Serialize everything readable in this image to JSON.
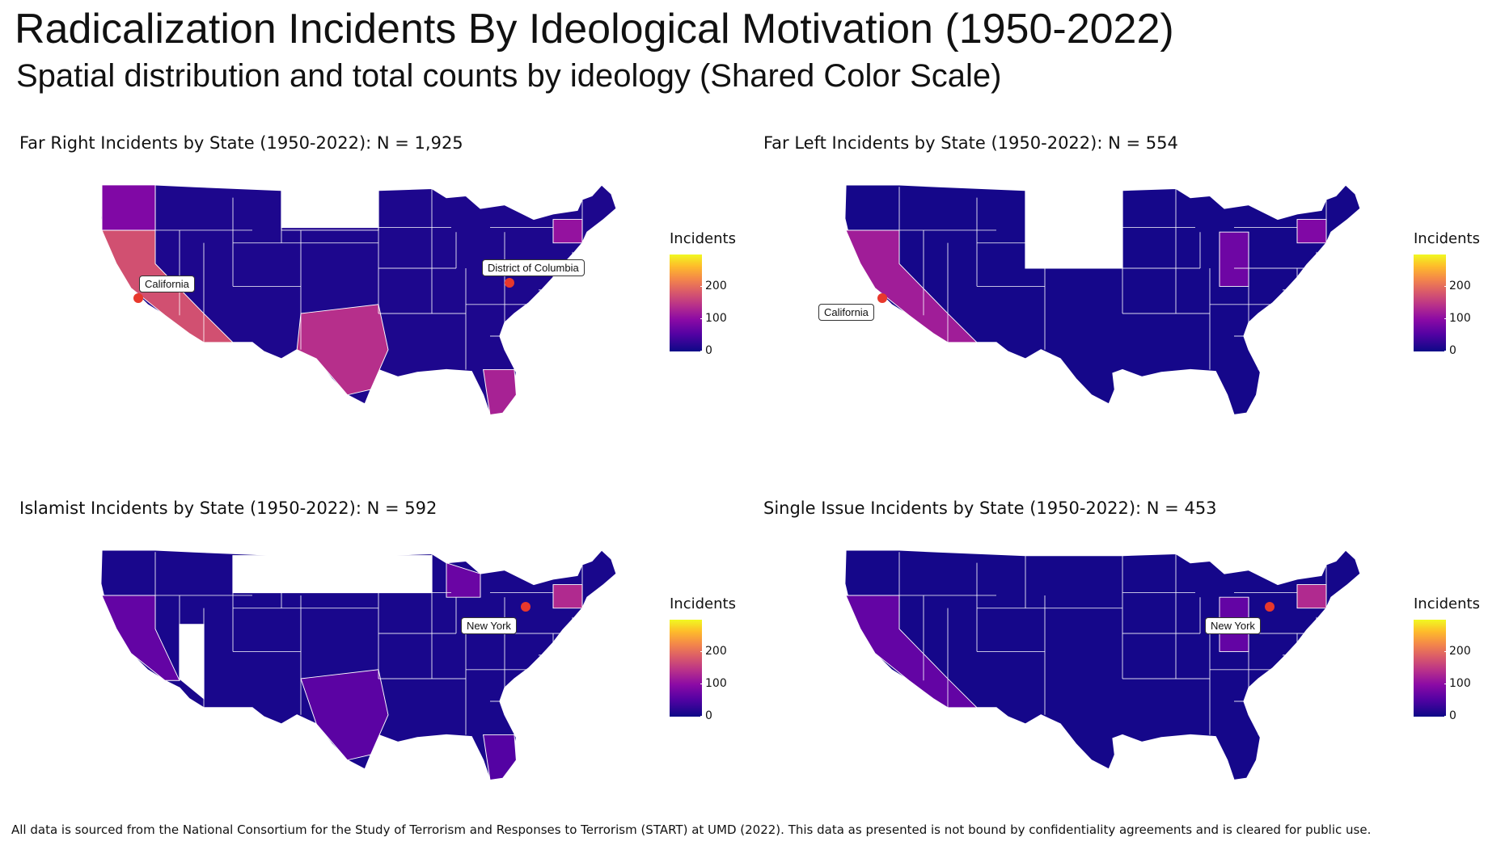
{
  "title": "Radicalization Incidents By Ideological Motivation (1950-2022)",
  "subtitle": "Spatial distribution and total counts by ideology (Shared Color Scale)",
  "legend": {
    "title": "Incidents",
    "ticks": [
      "0",
      "100",
      "200"
    ],
    "max": 300
  },
  "colors": {
    "low": "#0d0887",
    "high": "#f0f921",
    "highlight": "#e8382c",
    "border": "#ffffff"
  },
  "panels": [
    {
      "title": "Far Right Incidents by State (1950-2022): N = 1,925",
      "labels": [
        "California",
        "District of Columbia"
      ]
    },
    {
      "title": "Far Left Incidents by State (1950-2022): N = 554",
      "labels": [
        "California"
      ]
    },
    {
      "title": "Islamist Incidents by State (1950-2022): N = 592",
      "labels": [
        "New York"
      ]
    },
    {
      "title": "Single Issue Incidents by State (1950-2022): N = 453",
      "labels": [
        "New York"
      ]
    }
  ],
  "footer": "All data is sourced from the National Consortium for the Study of Terrorism and Responses to Terrorism (START) at UMD (2022). This data as presented is not bound by confidentiality agreements and is cleared for public use."
}
